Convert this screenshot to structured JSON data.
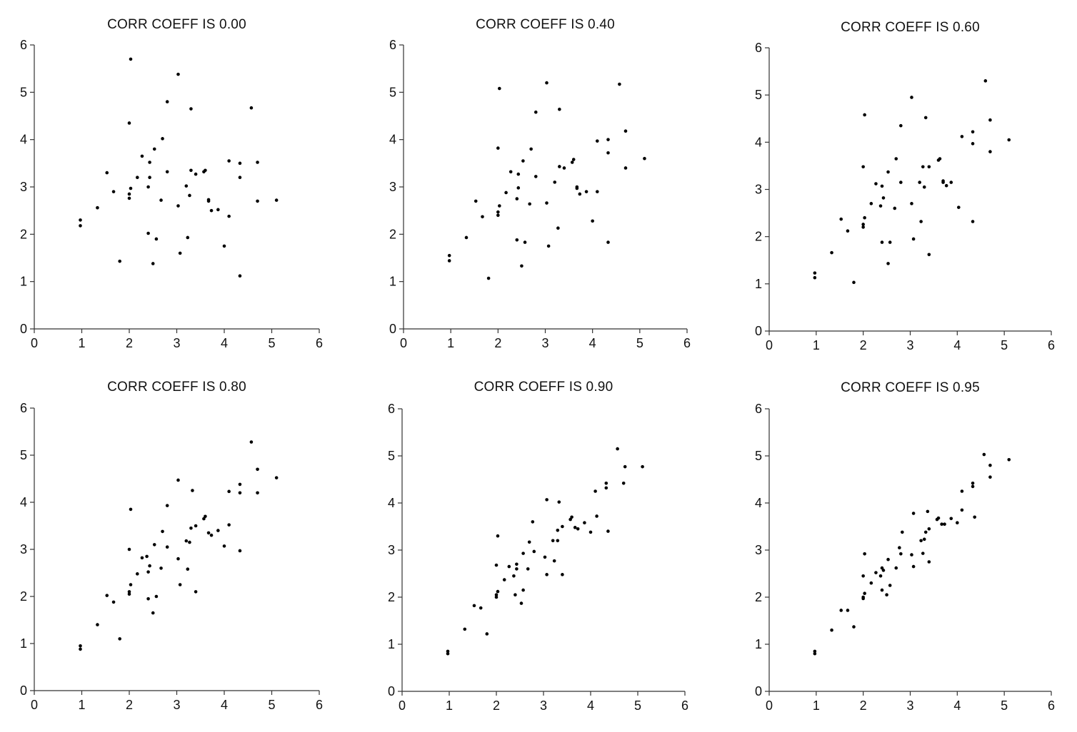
{
  "chart_data": [
    {
      "type": "scatter",
      "title": "CORR COEFF IS 0.00",
      "xlim": [
        0,
        6
      ],
      "ylim": [
        0,
        6
      ],
      "xticks": [
        0,
        1,
        2,
        3,
        4,
        5,
        6
      ],
      "yticks": [
        0,
        1,
        2,
        3,
        4,
        5,
        6
      ],
      "x": [
        0.97,
        0.97,
        1.33,
        1.53,
        1.67,
        1.8,
        2.0,
        2.0,
        2.0,
        2.03,
        2.03,
        2.17,
        2.27,
        2.4,
        2.4,
        2.43,
        2.43,
        2.5,
        2.53,
        2.57,
        2.67,
        2.7,
        2.8,
        2.8,
        3.03,
        3.03,
        3.07,
        3.2,
        3.23,
        3.27,
        3.3,
        3.3,
        3.4,
        3.57,
        3.6,
        3.67,
        3.67,
        3.73,
        3.87,
        4.0,
        4.1,
        4.1,
        4.33,
        4.33,
        4.33,
        4.57,
        4.7,
        4.7,
        5.1
      ],
      "y": [
        2.3,
        2.18,
        2.56,
        3.3,
        2.9,
        1.43,
        4.35,
        2.85,
        2.76,
        2.97,
        5.7,
        3.2,
        3.65,
        3.0,
        2.02,
        3.2,
        3.52,
        1.38,
        3.8,
        1.9,
        2.72,
        4.02,
        4.8,
        3.32,
        2.6,
        5.38,
        1.6,
        3.02,
        1.93,
        2.82,
        3.35,
        4.65,
        3.27,
        3.32,
        3.35,
        2.73,
        2.7,
        2.5,
        2.52,
        1.75,
        3.55,
        2.38,
        3.2,
        3.5,
        1.12,
        4.67,
        3.52,
        2.7,
        2.72
      ]
    },
    {
      "type": "scatter",
      "title": "CORR COEFF IS 0.40",
      "xlim": [
        0,
        6
      ],
      "ylim": [
        0,
        6
      ],
      "xticks": [
        0,
        1,
        2,
        3,
        4,
        5,
        6
      ],
      "yticks": [
        0,
        1,
        2,
        3,
        4,
        5,
        6
      ],
      "x": [
        0.97,
        0.97,
        1.33,
        1.53,
        1.67,
        1.8,
        2.0,
        2.0,
        2.0,
        2.03,
        2.03,
        2.17,
        2.27,
        2.4,
        2.4,
        2.43,
        2.43,
        2.5,
        2.53,
        2.57,
        2.67,
        2.7,
        2.8,
        2.8,
        3.03,
        3.03,
        3.07,
        3.2,
        3.27,
        3.3,
        3.3,
        3.4,
        3.57,
        3.6,
        3.67,
        3.67,
        3.73,
        3.87,
        4.0,
        4.1,
        4.1,
        4.33,
        4.33,
        4.33,
        4.57,
        4.7,
        4.7,
        5.1
      ],
      "y": [
        1.55,
        1.44,
        1.93,
        2.7,
        2.37,
        1.07,
        3.82,
        2.47,
        2.4,
        2.6,
        5.08,
        2.88,
        3.32,
        2.75,
        1.88,
        2.98,
        3.27,
        1.33,
        3.55,
        1.83,
        2.64,
        3.8,
        4.58,
        3.22,
        2.66,
        5.2,
        1.75,
        3.1,
        2.13,
        3.43,
        4.64,
        3.4,
        3.52,
        3.58,
        3.0,
        2.97,
        2.85,
        2.9,
        2.28,
        3.97,
        2.9,
        4.0,
        3.72,
        1.83,
        5.17,
        4.18,
        3.4,
        3.6
      ]
    },
    {
      "type": "scatter",
      "title": "CORR COEFF IS 0.60",
      "xlim": [
        0,
        6
      ],
      "ylim": [
        0,
        6
      ],
      "xticks": [
        0,
        1,
        2,
        3,
        4,
        5,
        6
      ],
      "yticks": [
        0,
        1,
        2,
        3,
        4,
        5,
        6
      ],
      "x": [
        0.97,
        0.97,
        1.33,
        1.53,
        1.67,
        1.8,
        2.0,
        2.0,
        2.0,
        2.03,
        2.03,
        2.17,
        2.27,
        2.37,
        2.4,
        2.4,
        2.43,
        2.53,
        2.53,
        2.57,
        2.67,
        2.7,
        2.8,
        2.8,
        3.03,
        3.03,
        3.07,
        3.2,
        3.23,
        3.27,
        3.3,
        3.33,
        3.4,
        3.4,
        3.6,
        3.63,
        3.7,
        3.7,
        3.77,
        3.87,
        4.03,
        4.1,
        4.33,
        4.33,
        4.33,
        4.6,
        4.7,
        4.7,
        5.1
      ],
      "y": [
        1.23,
        1.13,
        1.66,
        2.37,
        2.12,
        1.03,
        2.2,
        3.48,
        2.26,
        4.58,
        2.4,
        2.7,
        3.12,
        2.65,
        1.88,
        3.07,
        2.82,
        1.43,
        3.37,
        1.88,
        2.6,
        3.65,
        4.35,
        3.15,
        2.7,
        4.95,
        1.95,
        3.15,
        2.32,
        3.48,
        3.05,
        4.52,
        1.62,
        3.48,
        3.62,
        3.65,
        3.18,
        3.15,
        3.08,
        3.15,
        2.62,
        4.12,
        3.97,
        4.22,
        2.32,
        5.3,
        4.47,
        3.8,
        4.05
      ]
    },
    {
      "type": "scatter",
      "title": "CORR COEFF IS 0.80",
      "xlim": [
        0,
        6
      ],
      "ylim": [
        0,
        6
      ],
      "xticks": [
        0,
        1,
        2,
        3,
        4,
        5,
        6
      ],
      "yticks": [
        0,
        1,
        2,
        3,
        4,
        5,
        6
      ],
      "x": [
        0.97,
        0.97,
        1.33,
        1.53,
        1.67,
        1.8,
        2.0,
        2.0,
        2.0,
        2.03,
        2.03,
        2.17,
        2.27,
        2.37,
        2.4,
        2.4,
        2.43,
        2.5,
        2.53,
        2.57,
        2.67,
        2.7,
        2.8,
        2.8,
        3.03,
        3.03,
        3.07,
        3.2,
        3.23,
        3.27,
        3.3,
        3.33,
        3.4,
        3.4,
        3.57,
        3.6,
        3.67,
        3.73,
        3.87,
        4.0,
        4.1,
        4.1,
        4.33,
        4.33,
        4.33,
        4.57,
        4.7,
        4.7,
        5.1
      ],
      "y": [
        0.95,
        0.88,
        1.4,
        2.02,
        1.88,
        1.1,
        3.0,
        2.1,
        2.05,
        3.85,
        2.25,
        2.48,
        2.82,
        2.85,
        2.52,
        1.95,
        2.65,
        1.65,
        3.1,
        2.0,
        2.6,
        3.38,
        3.93,
        3.05,
        2.8,
        4.47,
        2.25,
        3.18,
        2.58,
        3.15,
        3.45,
        4.25,
        2.1,
        3.5,
        3.65,
        3.7,
        3.35,
        3.3,
        3.4,
        3.07,
        4.23,
        3.52,
        4.38,
        4.2,
        2.97,
        5.28,
        4.7,
        4.2,
        4.52
      ]
    },
    {
      "type": "scatter",
      "title": "CORR COEFF IS 0.90",
      "xlim": [
        0,
        6
      ],
      "ylim": [
        0,
        6
      ],
      "xticks": [
        0,
        1,
        2,
        3,
        4,
        5,
        6
      ],
      "yticks": [
        0,
        1,
        2,
        3,
        4,
        5,
        6
      ],
      "x": [
        0.97,
        0.97,
        1.33,
        1.53,
        1.67,
        1.8,
        2.0,
        2.0,
        2.0,
        2.03,
        2.03,
        2.17,
        2.27,
        2.37,
        2.4,
        2.43,
        2.43,
        2.53,
        2.57,
        2.57,
        2.67,
        2.7,
        2.77,
        2.8,
        3.03,
        3.07,
        3.07,
        3.2,
        3.23,
        3.3,
        3.3,
        3.33,
        3.4,
        3.4,
        3.57,
        3.6,
        3.67,
        3.73,
        3.87,
        4.0,
        4.1,
        4.13,
        4.33,
        4.33,
        4.37,
        4.57,
        4.7,
        4.73,
        5.1
      ],
      "y": [
        0.85,
        0.8,
        1.32,
        1.82,
        1.77,
        1.22,
        2.68,
        2.0,
        2.05,
        3.3,
        2.12,
        2.37,
        2.65,
        2.45,
        2.05,
        2.7,
        2.6,
        1.87,
        2.15,
        2.93,
        2.6,
        3.17,
        3.6,
        2.97,
        2.85,
        4.07,
        2.48,
        3.2,
        2.77,
        3.2,
        3.42,
        4.02,
        3.5,
        2.48,
        3.65,
        3.7,
        3.48,
        3.45,
        3.58,
        3.38,
        4.25,
        3.72,
        4.32,
        4.42,
        3.4,
        5.15,
        4.42,
        4.77,
        4.77
      ]
    },
    {
      "type": "scatter",
      "title": "CORR COEFF IS 0.95",
      "xlim": [
        0,
        6
      ],
      "ylim": [
        0,
        6
      ],
      "xticks": [
        0,
        1,
        2,
        3,
        4,
        5,
        6
      ],
      "yticks": [
        0,
        1,
        2,
        3,
        4,
        5,
        6
      ],
      "x": [
        0.97,
        0.97,
        1.33,
        1.53,
        1.67,
        1.8,
        2.0,
        2.0,
        2.0,
        2.03,
        2.03,
        2.17,
        2.27,
        2.37,
        2.4,
        2.4,
        2.43,
        2.5,
        2.53,
        2.57,
        2.7,
        2.77,
        2.8,
        2.83,
        3.03,
        3.07,
        3.07,
        3.23,
        3.27,
        3.3,
        3.33,
        3.37,
        3.4,
        3.4,
        3.57,
        3.6,
        3.67,
        3.73,
        3.87,
        4.0,
        4.1,
        4.1,
        4.33,
        4.33,
        4.37,
        4.57,
        4.7,
        4.7,
        5.1
      ],
      "y": [
        0.85,
        0.8,
        1.3,
        1.72,
        1.72,
        1.37,
        2.45,
        2.0,
        1.97,
        2.92,
        2.08,
        2.3,
        2.52,
        2.45,
        2.62,
        2.15,
        2.57,
        2.05,
        2.8,
        2.25,
        2.62,
        3.05,
        2.92,
        3.38,
        2.9,
        3.78,
        2.65,
        3.2,
        2.93,
        3.23,
        3.38,
        3.82,
        3.45,
        2.75,
        3.65,
        3.68,
        3.55,
        3.55,
        3.67,
        3.58,
        3.85,
        4.25,
        4.42,
        4.35,
        3.7,
        5.03,
        4.8,
        4.55,
        4.92
      ]
    }
  ]
}
